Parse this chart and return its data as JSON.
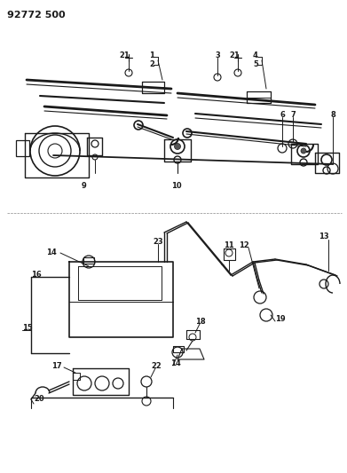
{
  "title": "92772 500",
  "bg": "#ffffff",
  "lc": "#1a1a1a",
  "fig_w": 3.91,
  "fig_h": 5.33,
  "dpi": 100
}
